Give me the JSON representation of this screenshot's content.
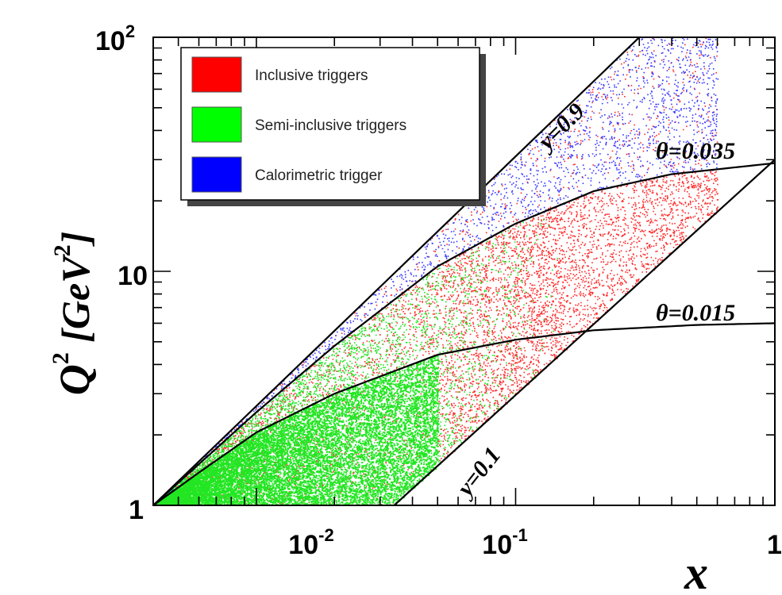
{
  "chart_data": {
    "type": "scatter",
    "x_scale": "log",
    "y_scale": "log",
    "xlim": [
      0.004,
      1
    ],
    "ylim": [
      1,
      100
    ],
    "x_ticks": [
      {
        "value": 0.01,
        "base": "10",
        "exp": "-2"
      },
      {
        "value": 0.1,
        "base": "10",
        "exp": "-1"
      },
      {
        "value": 1,
        "base": "1",
        "exp": ""
      }
    ],
    "y_ticks": [
      {
        "value": 1,
        "base": "1",
        "exp": ""
      },
      {
        "value": 10,
        "base": "10",
        "exp": ""
      },
      {
        "value": 100,
        "base": "10",
        "exp": "2"
      }
    ],
    "xlabel": "x",
    "ylabel": {
      "base": "Q",
      "exp": "2",
      "unit_pre": " [GeV",
      "unit_exp": "2",
      "unit_post": "]"
    },
    "grid": false,
    "legend": {
      "placement": "top-left",
      "entries": [
        {
          "label": "Inclusive triggers",
          "color": "#ff0000"
        },
        {
          "label": "Semi-inclusive triggers",
          "color": "#00ff00"
        },
        {
          "label": "Calorimetric trigger",
          "color": "#0000ff"
        }
      ]
    },
    "series": [
      {
        "label": "Inclusive triggers",
        "color": "#ff2a2a",
        "region": "between y=0.1 and theta=0.035"
      },
      {
        "label": "Semi-inclusive triggers",
        "color": "#22e622",
        "region": "low x, below theta=0.015"
      },
      {
        "label": "Calorimetric trigger",
        "color": "#3a3aff",
        "region": "between theta=0.035 and y=0.9"
      }
    ],
    "curves": [
      {
        "label": "y=0.9",
        "kind": "line",
        "points": [
          [
            0.004,
            1
          ],
          [
            0.3,
            100
          ]
        ]
      },
      {
        "label": "y=0.1",
        "kind": "line",
        "points": [
          [
            0.034,
            1
          ],
          [
            1,
            30
          ]
        ]
      },
      {
        "label": "θ=0.035",
        "kind": "curve",
        "points": [
          [
            0.004,
            1
          ],
          [
            0.01,
            2.5
          ],
          [
            0.02,
            4.8
          ],
          [
            0.05,
            10.5
          ],
          [
            0.1,
            16
          ],
          [
            0.2,
            22
          ],
          [
            0.4,
            26
          ],
          [
            1,
            29
          ]
        ]
      },
      {
        "label": "θ=0.015",
        "kind": "curve",
        "points": [
          [
            0.004,
            1
          ],
          [
            0.006,
            1.38
          ],
          [
            0.01,
            2.05
          ],
          [
            0.02,
            3.0
          ],
          [
            0.05,
            4.4
          ],
          [
            0.1,
            5.1
          ],
          [
            0.2,
            5.6
          ],
          [
            0.5,
            5.9
          ],
          [
            1,
            6.0
          ]
        ]
      }
    ]
  }
}
